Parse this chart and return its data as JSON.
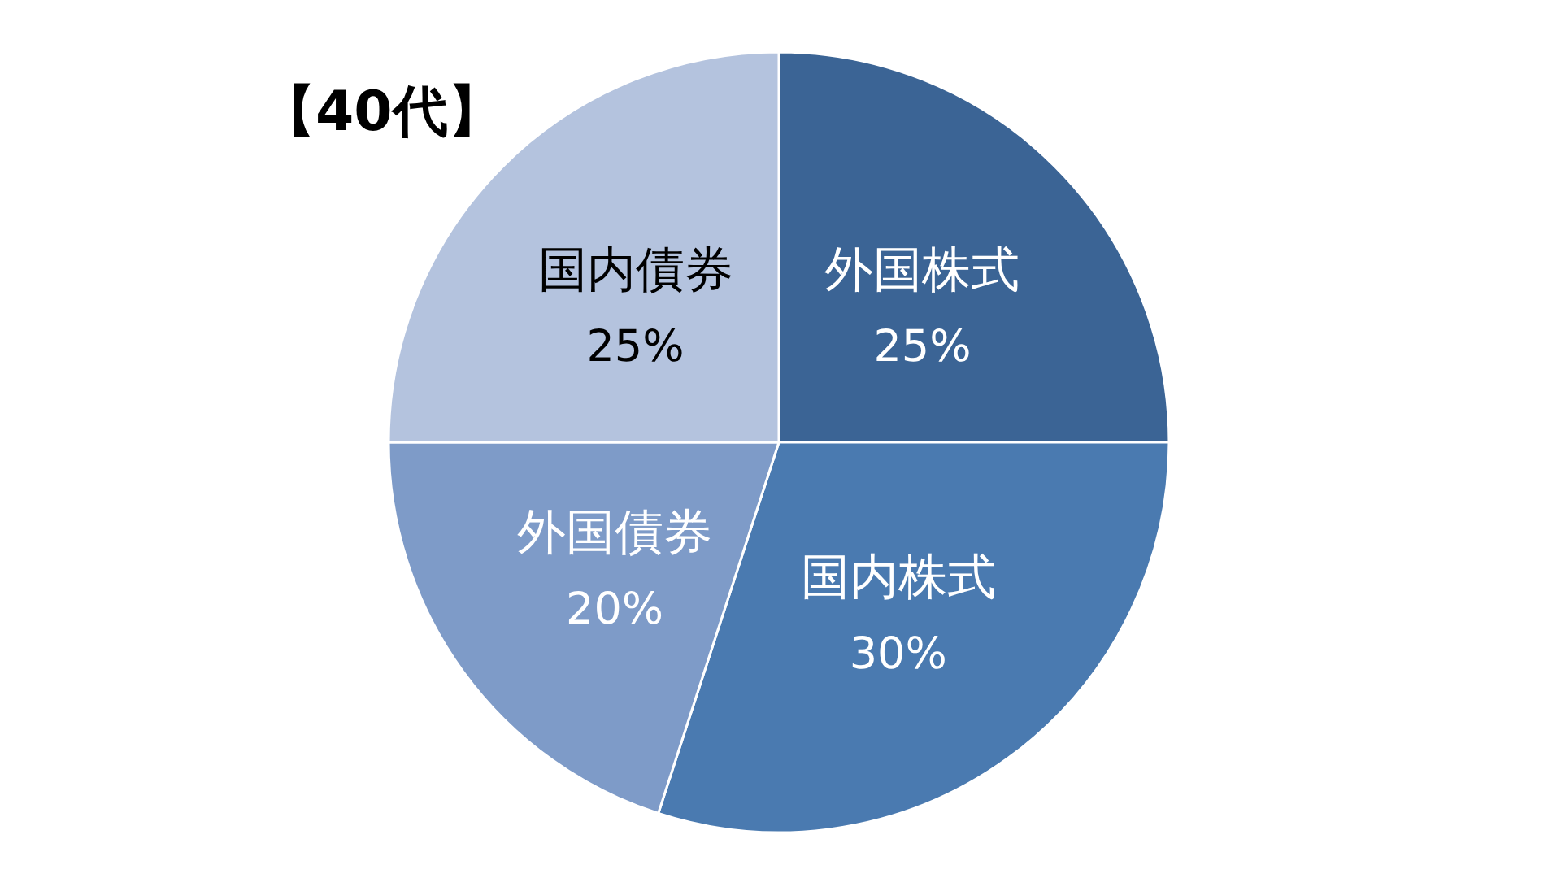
{
  "chart_data": {
    "type": "pie",
    "title": "【40代】",
    "categories": [
      "外国株式",
      "国内株式",
      "外国債券",
      "国内債券"
    ],
    "values": [
      25,
      30,
      20,
      25
    ],
    "colors": [
      "#3b6495",
      "#4a7ab0",
      "#7e9bc8",
      "#b4c3de"
    ],
    "value_labels": [
      "25%",
      "30%",
      "20%",
      "25%"
    ]
  }
}
